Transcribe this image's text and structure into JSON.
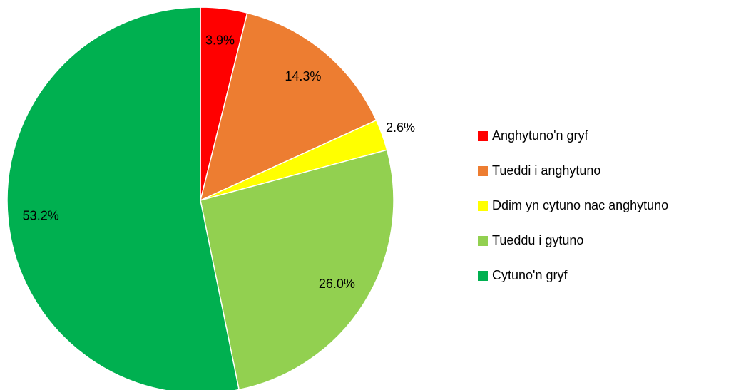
{
  "chart_data": {
    "type": "pie",
    "categories": [
      "Anghytuno'n gryf",
      "Tueddi i anghytuno",
      "Ddim yn cytuno nac anghytuno",
      "Tueddu i gytuno",
      "Cytuno'n gryf"
    ],
    "values": [
      3.9,
      14.3,
      2.6,
      26.0,
      53.2
    ],
    "value_labels": [
      "3.9%",
      "14.3%",
      "2.6%",
      "26.0%",
      "53.2%"
    ],
    "colors": [
      "#ff0000",
      "#ed7d31",
      "#ffff00",
      "#92d050",
      "#00b050"
    ],
    "legend": "right"
  }
}
